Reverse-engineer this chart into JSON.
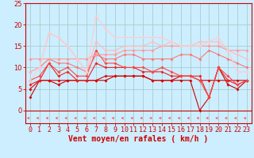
{
  "background_color": "#cceeff",
  "grid_color": "#aacccc",
  "title": "Vent moyen/en rafales ( km/h )",
  "xlim": [
    -0.5,
    23.5
  ],
  "ylim": [
    0,
    25
  ],
  "yticks": [
    0,
    5,
    10,
    15,
    20,
    25
  ],
  "xticks": [
    0,
    1,
    2,
    3,
    4,
    5,
    6,
    7,
    8,
    9,
    10,
    11,
    12,
    13,
    14,
    15,
    16,
    17,
    18,
    19,
    20,
    21,
    22,
    23
  ],
  "series": [
    {
      "color": "#cc0000",
      "linewidth": 0.8,
      "marker": "D",
      "markersize": 2.0,
      "values": [
        3,
        7,
        7,
        6,
        7,
        7,
        7,
        7,
        7,
        8,
        8,
        8,
        8,
        7,
        7,
        7,
        7,
        7,
        0,
        3,
        10,
        6,
        5,
        7
      ]
    },
    {
      "color": "#dd0000",
      "linewidth": 0.8,
      "marker": "D",
      "markersize": 2.0,
      "values": [
        5,
        7,
        7,
        7,
        7,
        7,
        7,
        7,
        8,
        8,
        8,
        8,
        8,
        7,
        7,
        7,
        8,
        8,
        7,
        7,
        7,
        7,
        7,
        7
      ]
    },
    {
      "color": "#ee2222",
      "linewidth": 0.8,
      "marker": "D",
      "markersize": 2.0,
      "values": [
        6,
        7,
        11,
        8,
        9,
        7,
        7,
        11,
        10,
        10,
        10,
        10,
        9,
        9,
        9,
        8,
        8,
        8,
        8,
        3,
        10,
        7,
        6,
        7
      ]
    },
    {
      "color": "#ff4444",
      "linewidth": 0.8,
      "marker": "D",
      "markersize": 2.0,
      "values": [
        7,
        8,
        11,
        9,
        10,
        8,
        8,
        14,
        11,
        11,
        10,
        10,
        10,
        9,
        10,
        9,
        8,
        8,
        7,
        3,
        10,
        8,
        6,
        7
      ]
    },
    {
      "color": "#ff7777",
      "linewidth": 0.8,
      "marker": "D",
      "markersize": 2.0,
      "values": [
        9,
        10,
        12,
        11,
        11,
        10,
        9,
        13,
        12,
        12,
        13,
        13,
        12,
        12,
        12,
        12,
        13,
        13,
        12,
        14,
        13,
        12,
        11,
        10
      ]
    },
    {
      "color": "#ff9999",
      "linewidth": 0.8,
      "marker": "D",
      "markersize": 2.0,
      "values": [
        12,
        12,
        12,
        12,
        12,
        12,
        12,
        13,
        13,
        13,
        14,
        14,
        14,
        14,
        15,
        15,
        15,
        15,
        15,
        15,
        15,
        14,
        14,
        14
      ]
    },
    {
      "color": "#ffbbbb",
      "linewidth": 0.8,
      "marker": "D",
      "markersize": 2.0,
      "values": [
        9,
        10,
        18,
        17,
        15,
        12,
        9,
        16,
        14,
        14,
        15,
        15,
        15,
        16,
        15,
        16,
        15,
        15,
        16,
        16,
        16,
        14,
        13,
        12
      ]
    },
    {
      "color": "#ffcccc",
      "linewidth": 0.8,
      "marker": "D",
      "markersize": 2.0,
      "values": [
        7,
        10,
        18,
        17,
        15,
        12,
        9,
        22,
        19,
        17,
        17,
        17,
        17,
        17,
        17,
        16,
        15,
        15,
        15,
        16,
        17,
        14,
        9,
        9
      ]
    }
  ],
  "xlabel_fontsize": 7,
  "tick_fontsize": 6,
  "arrow_color": "#ff4444"
}
